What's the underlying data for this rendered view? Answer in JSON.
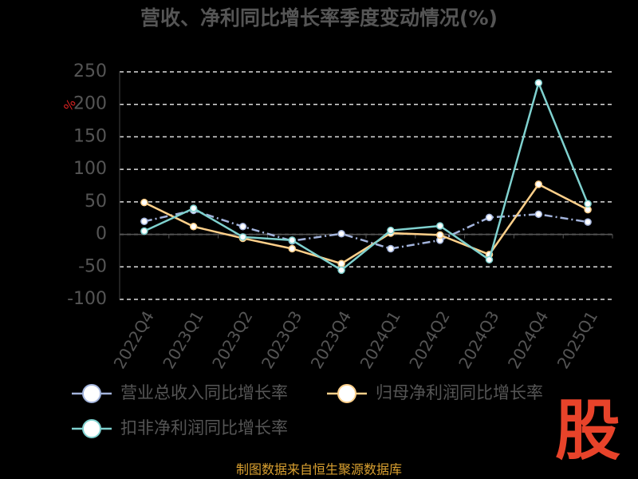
{
  "chart_data": {
    "type": "line",
    "title": "营收、净利同比增长率季度变动情况(%)",
    "y_label": "%",
    "categories": [
      "2022Q4",
      "2023Q1",
      "2023Q2",
      "2023Q3",
      "2023Q4",
      "2024Q1",
      "2024Q2",
      "2024Q3",
      "2024Q4",
      "2025Q1"
    ],
    "series": [
      {
        "name": "营业总收入同比增长率",
        "color": "#a3b4dc",
        "line_style": "dashdot",
        "values": [
          20,
          37,
          12,
          -10,
          1,
          -22,
          -9,
          26,
          31,
          19
        ]
      },
      {
        "name": "归母净利润同比增长率",
        "color": "#ffd08a",
        "line_style": "solid",
        "values": [
          49,
          12,
          -6,
          -22,
          -45,
          2,
          -1,
          -31,
          77,
          38
        ]
      },
      {
        "name": "扣非净利润同比增长率",
        "color": "#7fd1cf",
        "line_style": "solid",
        "values": [
          5,
          40,
          -4,
          -9,
          -55,
          6,
          13,
          -39,
          233,
          47
        ]
      }
    ],
    "ylim": [
      -100,
      250
    ],
    "yticks": [
      -100,
      -50,
      0,
      50,
      100,
      150,
      200,
      250
    ],
    "grid": true
  },
  "source": "制图数据来自恒生聚源数据库",
  "watermark": "股"
}
